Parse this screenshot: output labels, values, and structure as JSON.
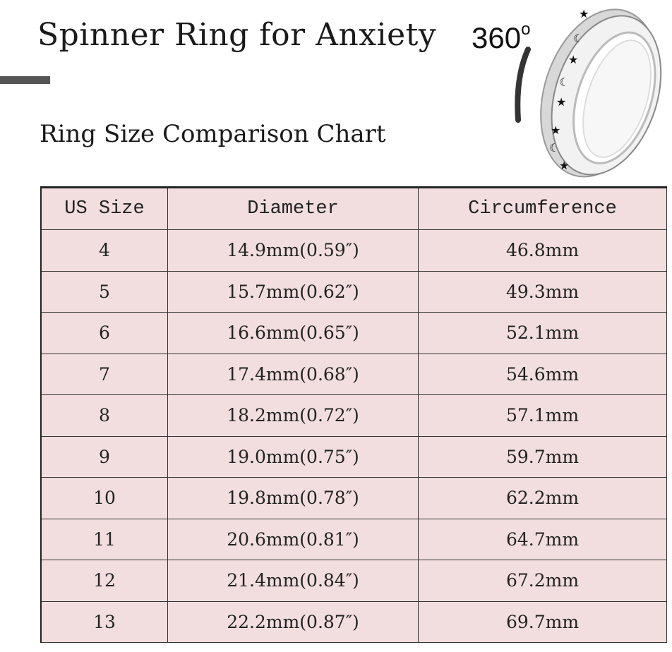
{
  "title": "Spinner Ring for Anxiety",
  "subtitle": "Ring Size Comparison Chart",
  "rotation_label": "360",
  "rotation_unit": "o",
  "table": {
    "headers": [
      "US Size",
      "Diameter",
      "Circumference"
    ],
    "rows": [
      [
        "4",
        "14.9mm(0.59″)",
        "46.8mm"
      ],
      [
        "5",
        "15.7mm(0.62″)",
        "49.3mm"
      ],
      [
        "6",
        "16.6mm(0.65″)",
        "52.1mm"
      ],
      [
        "7",
        "17.4mm(0.68″)",
        "54.6mm"
      ],
      [
        "8",
        "18.2mm(0.72″)",
        "57.1mm"
      ],
      [
        "9",
        "19.0mm(0.75″)",
        "59.7mm"
      ],
      [
        "10",
        "19.8mm(0.78″)",
        "62.2mm"
      ],
      [
        "11",
        "20.6mm(0.81″)",
        "64.7mm"
      ],
      [
        "12",
        "21.4mm(0.84″)",
        "67.2mm"
      ],
      [
        "13",
        "22.2mm(0.87″)",
        "69.7mm"
      ]
    ]
  },
  "colors": {
    "table_bg": "#f2dede",
    "accent_bar": "#555555"
  }
}
